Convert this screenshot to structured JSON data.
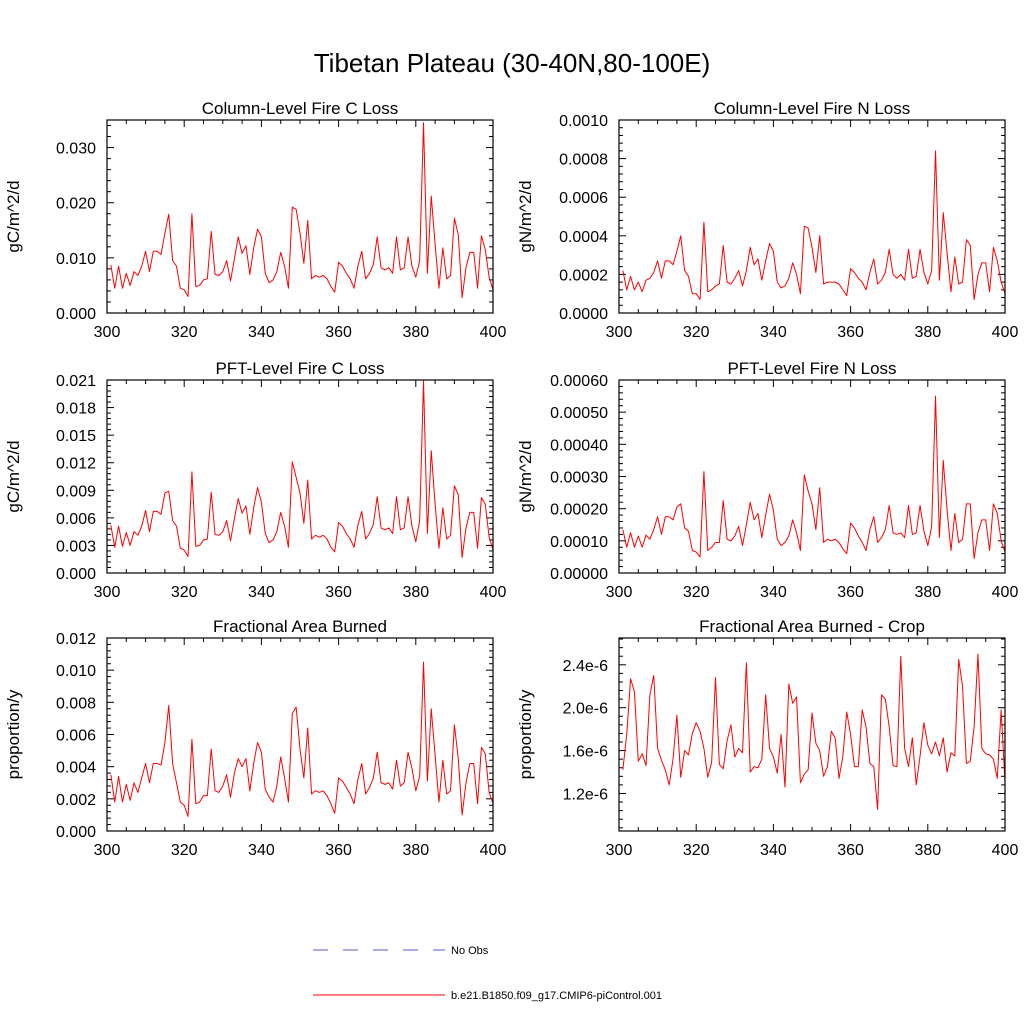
{
  "title": "Tibetan Plateau (30-40N,80-100E)",
  "legend": {
    "obs_label": "No Obs",
    "model_label": "b.e21.B1850.f09_g17.CMIP6-piControl.001",
    "obs_color": "#5a5acb",
    "model_color": "#ff0000"
  },
  "chart_data": [
    {
      "type": "line",
      "title": "Column-Level Fire C Loss",
      "ylabel": "gC/m^2/d",
      "xlim": [
        300,
        400
      ],
      "ylim": [
        0,
        0.035
      ],
      "xticks": [
        300,
        320,
        340,
        360,
        380,
        400
      ],
      "yticks": [
        0.0,
        0.01,
        0.02,
        0.03
      ],
      "ytick_labels": [
        "0.000",
        "0.010",
        "0.020",
        "0.030"
      ],
      "x_start": 301,
      "x_step": 1,
      "series": [
        {
          "name": "b.e21.B1850.f09_g17.CMIP6-piControl.001",
          "values": [
            0.0087,
            0.0045,
            0.0085,
            0.0045,
            0.0072,
            0.005,
            0.0075,
            0.0068,
            0.0085,
            0.0112,
            0.0075,
            0.0112,
            0.0112,
            0.0106,
            0.0145,
            0.0179,
            0.0095,
            0.0085,
            0.0045,
            0.0042,
            0.003,
            0.018,
            0.0048,
            0.005,
            0.006,
            0.0062,
            0.0148,
            0.007,
            0.0068,
            0.0075,
            0.0095,
            0.0058,
            0.0098,
            0.0138,
            0.0108,
            0.0122,
            0.007,
            0.0118,
            0.0152,
            0.0138,
            0.0072,
            0.0055,
            0.006,
            0.0075,
            0.011,
            0.0085,
            0.0045,
            0.0192,
            0.0188,
            0.0145,
            0.009,
            0.0168,
            0.0062,
            0.0068,
            0.0065,
            0.0068,
            0.0062,
            0.0048,
            0.0038,
            0.0092,
            0.0085,
            0.0072,
            0.0062,
            0.0045,
            0.0085,
            0.0112,
            0.0062,
            0.0072,
            0.0088,
            0.0138,
            0.0082,
            0.0078,
            0.0082,
            0.0072,
            0.0138,
            0.0078,
            0.0082,
            0.0138,
            0.0085,
            0.0065,
            0.0095,
            0.0345,
            0.0072,
            0.0212,
            0.0125,
            0.0045,
            0.0118,
            0.0062,
            0.0068,
            0.0172,
            0.0142,
            0.0028,
            0.0082,
            0.011,
            0.011,
            0.0045,
            0.014,
            0.0115,
            0.0065,
            0.0042
          ]
        }
      ]
    },
    {
      "type": "line",
      "title": "Column-Level Fire N Loss",
      "ylabel": "gN/m^2/d",
      "xlim": [
        300,
        400
      ],
      "ylim": [
        0,
        0.001
      ],
      "xticks": [
        300,
        320,
        340,
        360,
        380,
        400
      ],
      "yticks": [
        0.0,
        0.0002,
        0.0004,
        0.0006,
        0.0008,
        0.001
      ],
      "ytick_labels": [
        "0.0000",
        "0.0002",
        "0.0004",
        "0.0006",
        "0.0008",
        "0.0010"
      ],
      "x_start": 301,
      "x_step": 1,
      "series": [
        {
          "name": "b.e21.B1850.f09_g17.CMIP6-piControl.001",
          "values": [
            0.00022,
            0.00012,
            0.00019,
            0.00012,
            0.00016,
            0.00011,
            0.00017,
            0.00018,
            0.00021,
            0.00027,
            0.00018,
            0.00027,
            0.00027,
            0.00025,
            0.00032,
            0.0004,
            0.00022,
            0.00019,
            0.0001,
            0.0001,
            7e-05,
            0.00047,
            0.00011,
            0.00012,
            0.00014,
            0.00015,
            0.00035,
            0.00016,
            0.00015,
            0.00018,
            0.00022,
            0.00014,
            0.00022,
            0.00034,
            0.00025,
            0.00028,
            0.00017,
            0.00027,
            0.00036,
            0.00032,
            0.00016,
            0.00013,
            0.00014,
            0.00018,
            0.00026,
            0.0002,
            0.0001,
            0.00045,
            0.00044,
            0.00034,
            0.00021,
            0.0004,
            0.00015,
            0.00016,
            0.00016,
            0.00016,
            0.00015,
            0.00012,
            9e-05,
            0.00023,
            0.00021,
            0.00018,
            0.00016,
            0.00012,
            0.00021,
            0.00028,
            0.00015,
            0.00017,
            0.00021,
            0.00033,
            0.0002,
            0.00018,
            0.0002,
            0.00017,
            0.00033,
            0.00018,
            0.00019,
            0.00033,
            0.00021,
            0.00015,
            0.00022,
            0.00084,
            0.00017,
            0.00052,
            0.00031,
            0.00011,
            0.00029,
            0.00015,
            0.00016,
            0.00038,
            0.00035,
            7e-05,
            0.0002,
            0.00026,
            0.00026,
            0.00011,
            0.00034,
            0.00027,
            0.00016,
            0.0001
          ]
        }
      ]
    },
    {
      "type": "line",
      "title": "PFT-Level Fire C Loss",
      "ylabel": "gC/m^2/d",
      "xlim": [
        300,
        400
      ],
      "ylim": [
        0,
        0.021
      ],
      "xticks": [
        300,
        320,
        340,
        360,
        380,
        400
      ],
      "yticks": [
        0.0,
        0.003,
        0.006,
        0.009,
        0.012,
        0.015,
        0.018,
        0.021
      ],
      "ytick_labels": [
        "0.000",
        "0.003",
        "0.006",
        "0.009",
        "0.012",
        "0.015",
        "0.018",
        "0.021"
      ],
      "x_start": 301,
      "x_step": 1,
      "series": [
        {
          "name": "b.e21.B1850.f09_g17.CMIP6-piControl.001",
          "values": [
            0.0052,
            0.0028,
            0.0051,
            0.0029,
            0.0044,
            0.003,
            0.0045,
            0.0041,
            0.0051,
            0.0068,
            0.0045,
            0.0067,
            0.0067,
            0.0064,
            0.0087,
            0.0089,
            0.0057,
            0.0051,
            0.0027,
            0.0025,
            0.0018,
            0.011,
            0.0029,
            0.003,
            0.0036,
            0.0037,
            0.0088,
            0.0042,
            0.0041,
            0.0045,
            0.0057,
            0.0035,
            0.0059,
            0.0081,
            0.0065,
            0.0073,
            0.0042,
            0.0071,
            0.0093,
            0.0077,
            0.0043,
            0.0033,
            0.0036,
            0.0045,
            0.0066,
            0.0051,
            0.0028,
            0.0121,
            0.0104,
            0.0087,
            0.0054,
            0.0101,
            0.0037,
            0.0041,
            0.0039,
            0.0041,
            0.0037,
            0.0028,
            0.0023,
            0.0055,
            0.0051,
            0.0043,
            0.0037,
            0.0028,
            0.0052,
            0.0067,
            0.0037,
            0.0043,
            0.0053,
            0.0083,
            0.0049,
            0.0047,
            0.0049,
            0.0043,
            0.0083,
            0.0047,
            0.0049,
            0.0083,
            0.0051,
            0.0034,
            0.0057,
            0.0209,
            0.0043,
            0.0133,
            0.0075,
            0.0027,
            0.0071,
            0.0037,
            0.0041,
            0.0095,
            0.0085,
            0.0017,
            0.0049,
            0.0066,
            0.0066,
            0.0027,
            0.0082,
            0.0075,
            0.0039,
            0.0025
          ]
        }
      ]
    },
    {
      "type": "line",
      "title": "PFT-Level Fire N Loss",
      "ylabel": "gN/m^2/d",
      "xlim": [
        300,
        400
      ],
      "ylim": [
        0,
        0.0006
      ],
      "xticks": [
        300,
        320,
        340,
        360,
        380,
        400
      ],
      "yticks": [
        0.0,
        0.0001,
        0.0002,
        0.0003,
        0.0004,
        0.0005,
        0.0006
      ],
      "ytick_labels": [
        "0.00000",
        "0.00010",
        "0.00020",
        "0.00030",
        "0.00040",
        "0.00050",
        "0.00060"
      ],
      "x_start": 301,
      "x_step": 1,
      "series": [
        {
          "name": "b.e21.B1850.f09_g17.CMIP6-piControl.001",
          "values": [
            0.000135,
            8e-05,
            0.000125,
            8e-05,
            0.000115,
            8e-05,
            0.000118,
            0.000105,
            0.000135,
            0.000175,
            0.00012,
            0.000175,
            0.000175,
            0.000165,
            0.000205,
            0.000215,
            0.00014,
            0.00013,
            7e-05,
            6.5e-05,
            5e-05,
            0.000315,
            7e-05,
            8e-05,
            9.5e-05,
            9.5e-05,
            0.000225,
            0.000105,
            0.0001,
            0.000115,
            0.000145,
            8.5e-05,
            0.00015,
            0.00022,
            0.000165,
            0.000185,
            0.00011,
            0.00018,
            0.000245,
            0.000195,
            0.000105,
            8.5e-05,
            9.5e-05,
            0.000115,
            0.000165,
            0.000125,
            7e-05,
            0.000305,
            0.000255,
            0.000215,
            0.000135,
            0.000265,
            9.5e-05,
            0.000105,
            0.0001,
            0.000105,
            9.5e-05,
            7.5e-05,
            6e-05,
            0.000155,
            0.00014,
            0.000115,
            9.5e-05,
            7e-05,
            0.000135,
            0.000175,
            9.5e-05,
            0.00011,
            0.000135,
            0.00021,
            0.000125,
            0.00012,
            0.000125,
            0.00011,
            0.00021,
            0.00012,
            0.000125,
            0.00021,
            0.00013,
            8.5e-05,
            0.000145,
            0.00055,
            0.00011,
            0.00035,
            0.000195,
            7e-05,
            0.000185,
            9.5e-05,
            0.000105,
            0.000215,
            0.000215,
            4.5e-05,
            0.000125,
            0.000165,
            0.000165,
            7e-05,
            0.000215,
            0.000185,
            0.0001,
            6.5e-05
          ]
        }
      ]
    },
    {
      "type": "line",
      "title": "Fractional Area Burned",
      "ylabel": "proportion/y",
      "xlim": [
        300,
        400
      ],
      "ylim": [
        0,
        0.012
      ],
      "xticks": [
        300,
        320,
        340,
        360,
        380,
        400
      ],
      "yticks": [
        0.0,
        0.002,
        0.004,
        0.006,
        0.008,
        0.01,
        0.012
      ],
      "ytick_labels": [
        "0.000",
        "0.002",
        "0.004",
        "0.006",
        "0.008",
        "0.010",
        "0.012"
      ],
      "x_start": 301,
      "x_step": 1,
      "series": [
        {
          "name": "b.e21.B1850.f09_g17.CMIP6-piControl.001",
          "values": [
            0.0035,
            0.0018,
            0.0034,
            0.0018,
            0.0029,
            0.0019,
            0.003,
            0.0024,
            0.0033,
            0.0042,
            0.003,
            0.0042,
            0.0042,
            0.0041,
            0.0055,
            0.0078,
            0.0042,
            0.003,
            0.0018,
            0.0016,
            0.0009,
            0.0057,
            0.0017,
            0.0018,
            0.0022,
            0.0022,
            0.0051,
            0.0025,
            0.0024,
            0.0028,
            0.0035,
            0.0021,
            0.0036,
            0.0045,
            0.004,
            0.0045,
            0.0025,
            0.0042,
            0.0055,
            0.0049,
            0.0026,
            0.0021,
            0.0018,
            0.0028,
            0.0046,
            0.0033,
            0.0018,
            0.0073,
            0.0077,
            0.0051,
            0.0033,
            0.0064,
            0.0023,
            0.0025,
            0.0024,
            0.0025,
            0.0022,
            0.0017,
            0.0011,
            0.0033,
            0.0031,
            0.0027,
            0.0023,
            0.0017,
            0.0032,
            0.0042,
            0.0023,
            0.0027,
            0.0033,
            0.0049,
            0.003,
            0.0029,
            0.003,
            0.0026,
            0.0044,
            0.0028,
            0.003,
            0.0049,
            0.0039,
            0.0025,
            0.0034,
            0.0105,
            0.0031,
            0.0076,
            0.0047,
            0.0018,
            0.0044,
            0.0023,
            0.0025,
            0.0066,
            0.0045,
            0.001,
            0.003,
            0.0042,
            0.0042,
            0.0017,
            0.0052,
            0.0048,
            0.0024,
            0.0017
          ]
        }
      ]
    },
    {
      "type": "line",
      "title": "Fractional Area Burned - Crop",
      "ylabel": "proportion/y",
      "xlim": [
        300,
        400
      ],
      "ylim": [
        8.5e-07,
        2.65e-06
      ],
      "xticks": [
        300,
        320,
        340,
        360,
        380,
        400
      ],
      "yticks": [
        1.2e-06,
        1.6e-06,
        2e-06,
        2.4e-06
      ],
      "ytick_labels": [
        "1.2e-6",
        "1.6e-6",
        "2.0e-6",
        "2.4e-6"
      ],
      "x_start": 301,
      "x_step": 1,
      "series": [
        {
          "name": "b.e21.B1850.f09_g17.CMIP6-piControl.001",
          "values": [
            1.42e-06,
            1.75e-06,
            2.27e-06,
            2.15e-06,
            1.5e-06,
            1.57e-06,
            1.46e-06,
            2.12e-06,
            2.3e-06,
            1.62e-06,
            1.51e-06,
            1.42e-06,
            1.28e-06,
            1.52e-06,
            1.93e-06,
            1.35e-06,
            1.6e-06,
            1.56e-06,
            1.76e-06,
            1.86e-06,
            1.78e-06,
            1.62e-06,
            1.35e-06,
            1.49e-06,
            2.28e-06,
            1.47e-06,
            1.43e-06,
            1.69e-06,
            1.84e-06,
            1.54e-06,
            1.62e-06,
            1.58e-06,
            2.42e-06,
            1.4e-06,
            1.45e-06,
            1.44e-06,
            1.52e-06,
            2.12e-06,
            1.62e-06,
            1.54e-06,
            1.39e-06,
            1.75e-06,
            1.26e-06,
            2.22e-06,
            2.04e-06,
            2.1e-06,
            1.3e-06,
            1.38e-06,
            1.42e-06,
            1.95e-06,
            1.67e-06,
            1.6e-06,
            1.36e-06,
            1.45e-06,
            1.78e-06,
            1.72e-06,
            1.34e-06,
            1.55e-06,
            1.96e-06,
            1.75e-06,
            1.45e-06,
            1.45e-06,
            1.98e-06,
            1.82e-06,
            1.48e-06,
            1.45e-06,
            1.05e-06,
            2.12e-06,
            2.08e-06,
            1.82e-06,
            1.46e-06,
            1.45e-06,
            2.48e-06,
            1.62e-06,
            1.45e-06,
            1.72e-06,
            1.28e-06,
            1.55e-06,
            1.86e-06,
            1.65e-06,
            1.57e-06,
            1.68e-06,
            1.55e-06,
            1.72e-06,
            1.4e-06,
            1.58e-06,
            1.55e-06,
            2.45e-06,
            2.2e-06,
            1.48e-06,
            1.5e-06,
            1.82e-06,
            2.5e-06,
            1.62e-06,
            1.57e-06,
            1.56e-06,
            1.52e-06,
            1.34e-06,
            1.98e-06,
            1.3e-06
          ]
        }
      ]
    }
  ]
}
